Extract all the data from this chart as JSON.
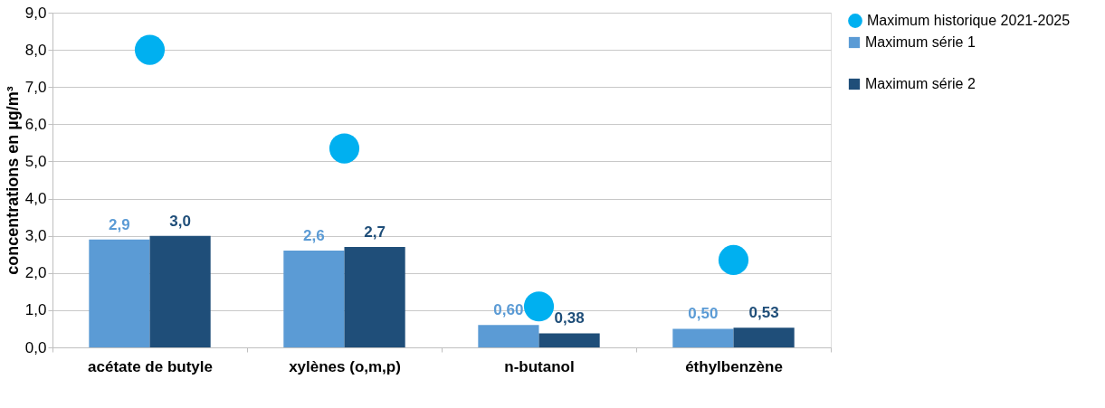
{
  "chart_data": {
    "type": "bar",
    "ylabel": "concentrations en µg/m³",
    "categories": [
      "acétate de butyle",
      "xylènes (o,m,p)",
      "n-butanol",
      "éthylbenzène"
    ],
    "series": [
      {
        "name": "Maximum série 1",
        "color": "#5b9bd5",
        "values": [
          2.9,
          2.6,
          0.6,
          0.5
        ],
        "value_labels": [
          "2,9",
          "2,6",
          "0,60",
          "0,50"
        ]
      },
      {
        "name": "Maximum série 2",
        "color": "#1f4e79",
        "values": [
          3.0,
          2.7,
          0.38,
          0.53
        ],
        "value_labels": [
          "3,0",
          "2,7",
          "0,38",
          "0,53"
        ]
      },
      {
        "name": "Maximum historique 2021-2025",
        "type": "scatter",
        "color": "#00b0f0",
        "values": [
          8.0,
          5.35,
          1.1,
          2.35
        ]
      }
    ],
    "ylim": [
      0,
      9
    ],
    "yticks": [
      {
        "value": 0,
        "label": "0,0"
      },
      {
        "value": 1,
        "label": "1,0"
      },
      {
        "value": 2,
        "label": "2,0"
      },
      {
        "value": 3,
        "label": "3,0"
      },
      {
        "value": 4,
        "label": "4,0"
      },
      {
        "value": 5,
        "label": "5,0"
      },
      {
        "value": 6,
        "label": "6,0"
      },
      {
        "value": 7,
        "label": "7,0"
      },
      {
        "value": 8,
        "label": "8,0"
      },
      {
        "value": 9,
        "label": "9,0"
      }
    ],
    "grid": "y",
    "legend": "right",
    "marker": "circle"
  }
}
